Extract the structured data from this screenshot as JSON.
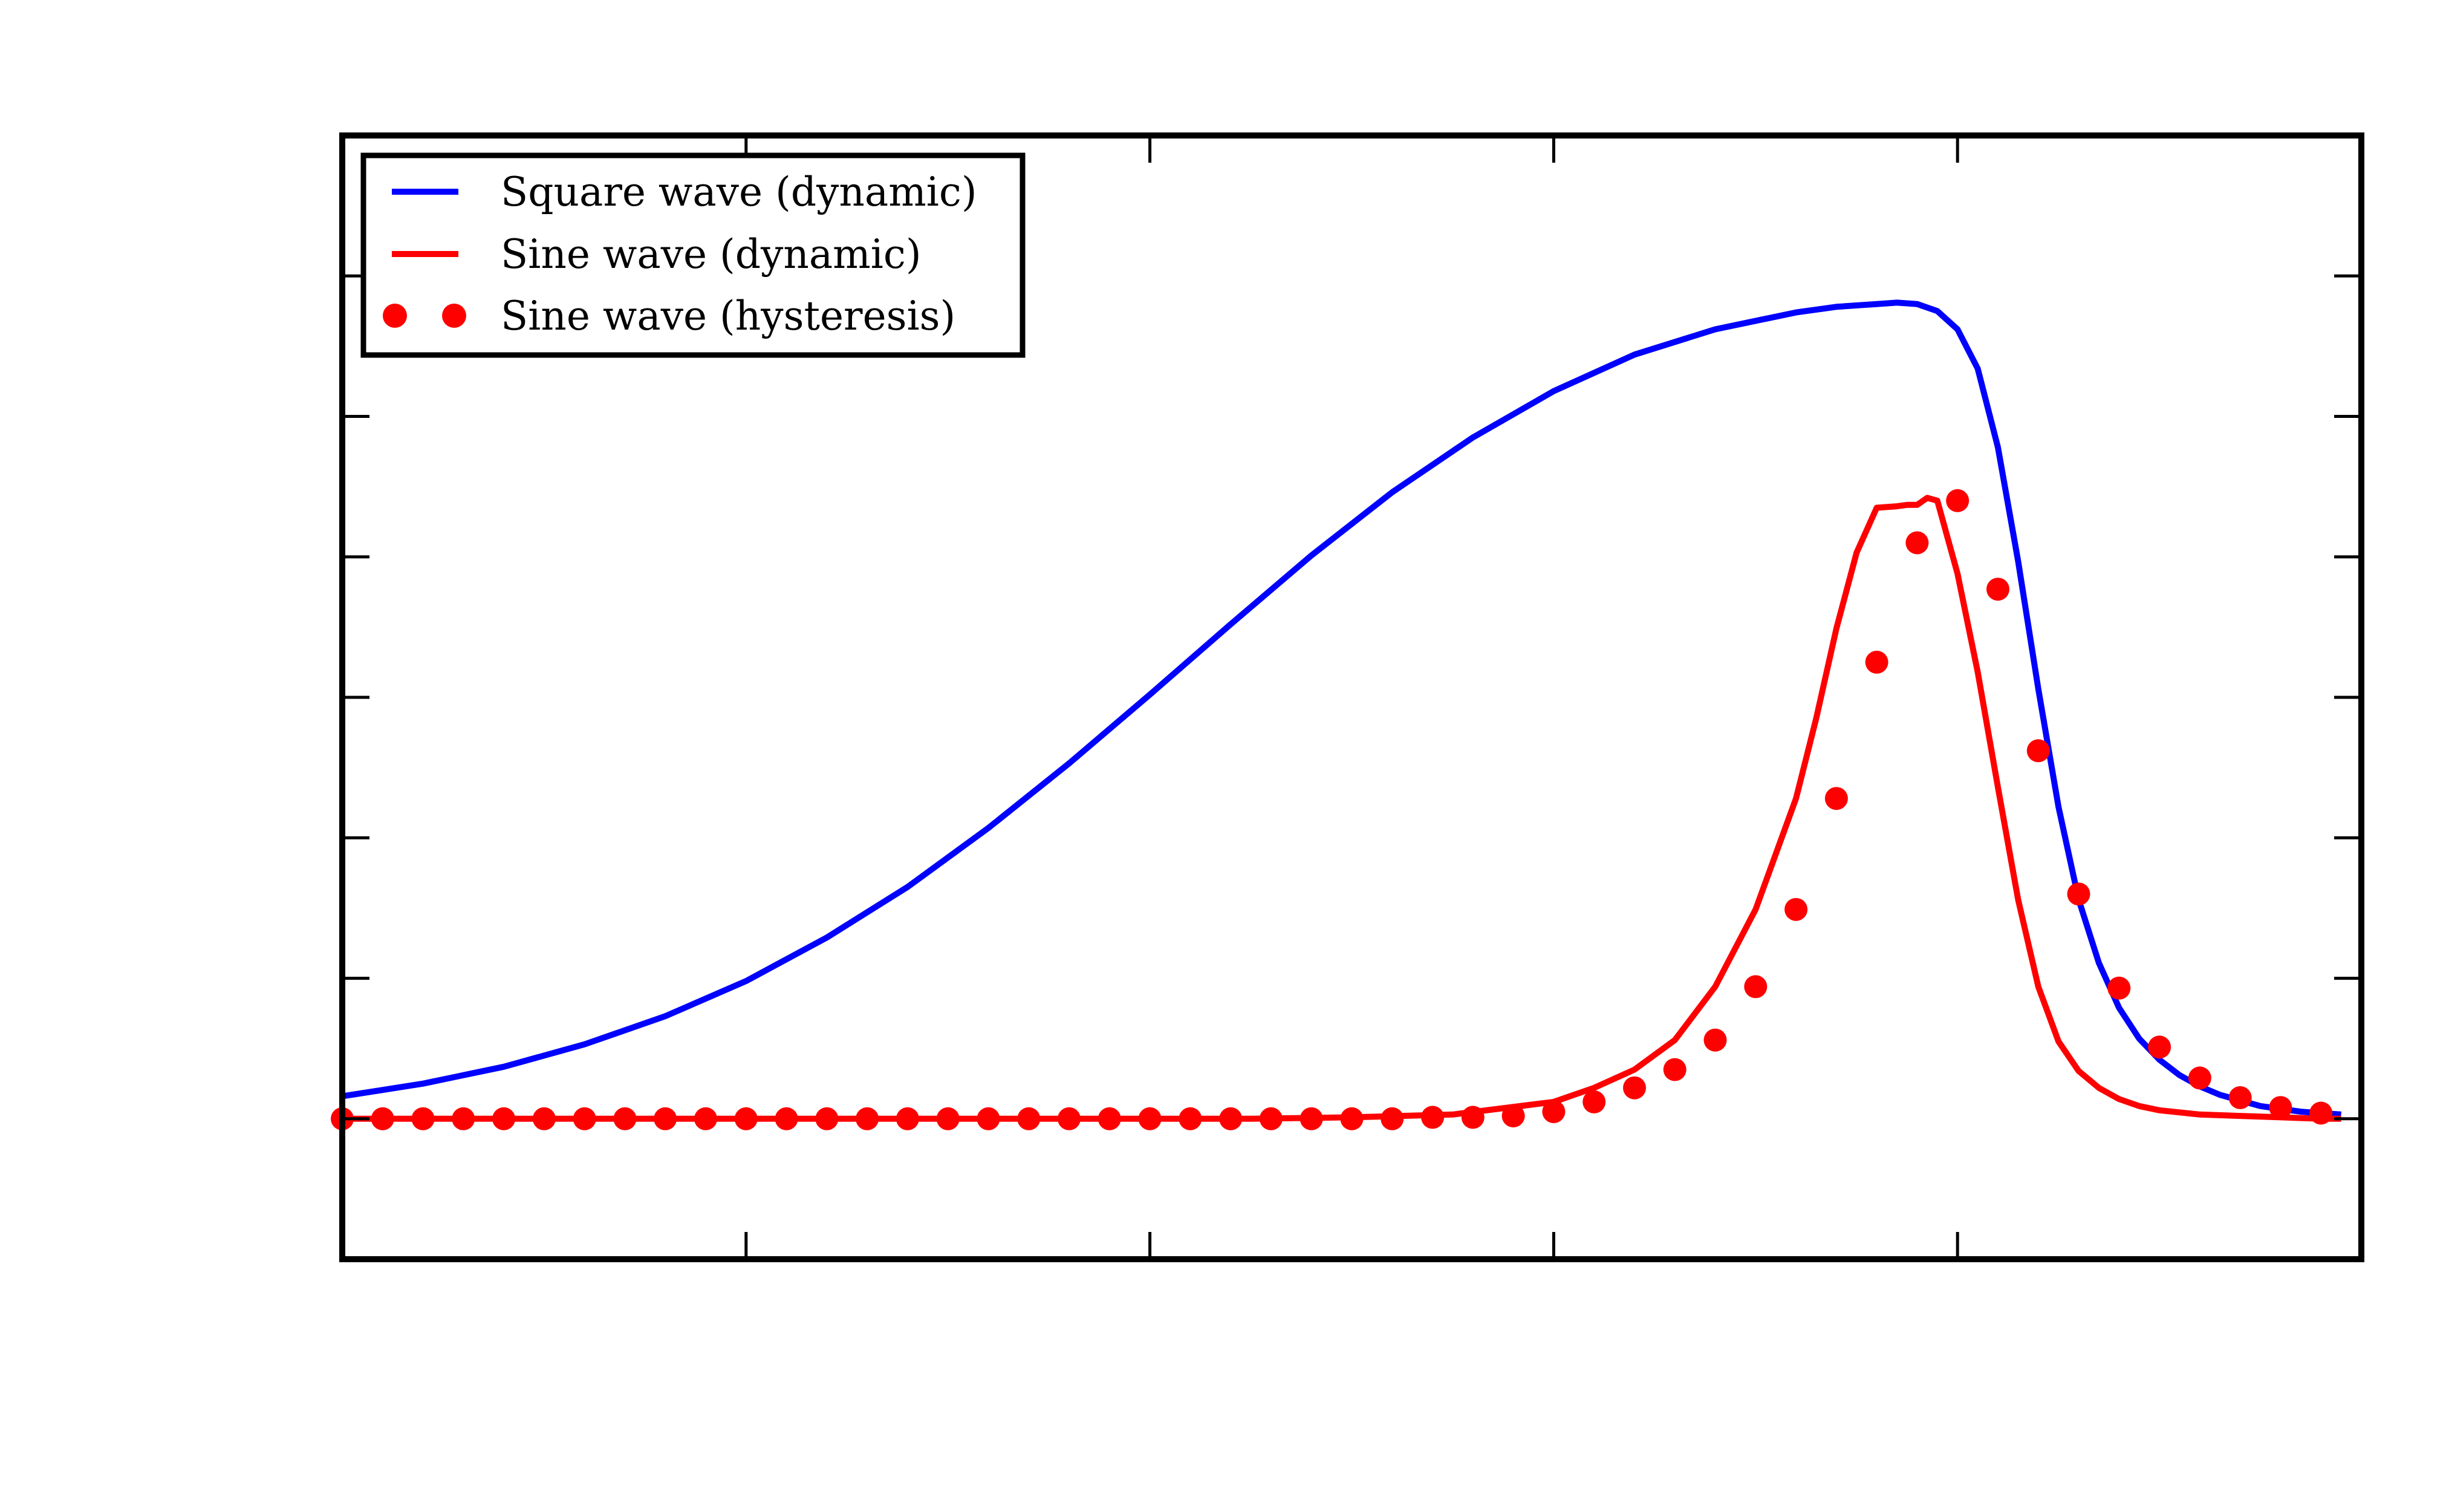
{
  "chart_data": {
    "type": "line",
    "title": "",
    "xlabel": "",
    "ylabel": "",
    "xlim": [
      0,
      1
    ],
    "ylim": [
      -0.1,
      0.7
    ],
    "grid": false,
    "legend_position": "top-left",
    "x_tick_values": [
      0.2,
      0.4,
      0.6,
      0.8
    ],
    "y_tick_values": [
      0.0,
      0.1,
      0.2,
      0.3,
      0.4,
      0.5,
      0.6
    ],
    "tick_labels_visible": false,
    "series": [
      {
        "name": "Square wave (dynamic)",
        "style": "line",
        "color": "#0000ff",
        "x": [
          0.0,
          0.04,
          0.08,
          0.12,
          0.16,
          0.2,
          0.24,
          0.28,
          0.32,
          0.36,
          0.4,
          0.44,
          0.48,
          0.52,
          0.56,
          0.6,
          0.64,
          0.68,
          0.72,
          0.74,
          0.76,
          0.77,
          0.78,
          0.79,
          0.8,
          0.81,
          0.82,
          0.83,
          0.84,
          0.85,
          0.86,
          0.87,
          0.88,
          0.89,
          0.9,
          0.91,
          0.92,
          0.93,
          0.94,
          0.95,
          0.96,
          0.97,
          0.98,
          0.99
        ],
        "y": [
          0.016,
          0.025,
          0.037,
          0.053,
          0.073,
          0.098,
          0.129,
          0.165,
          0.207,
          0.253,
          0.302,
          0.352,
          0.401,
          0.446,
          0.485,
          0.518,
          0.544,
          0.562,
          0.574,
          0.578,
          0.58,
          0.581,
          0.58,
          0.575,
          0.562,
          0.534,
          0.478,
          0.397,
          0.306,
          0.222,
          0.156,
          0.111,
          0.079,
          0.057,
          0.042,
          0.031,
          0.023,
          0.017,
          0.013,
          0.009,
          0.007,
          0.005,
          0.004,
          0.003
        ]
      },
      {
        "name": "Sine wave (dynamic)",
        "style": "line",
        "color": "#ff0000",
        "x": [
          0.0,
          0.05,
          0.1,
          0.15,
          0.2,
          0.25,
          0.3,
          0.35,
          0.4,
          0.45,
          0.5,
          0.55,
          0.6,
          0.62,
          0.64,
          0.66,
          0.68,
          0.7,
          0.72,
          0.73,
          0.74,
          0.75,
          0.76,
          0.77,
          0.775,
          0.78,
          0.785,
          0.79,
          0.8,
          0.81,
          0.82,
          0.83,
          0.84,
          0.85,
          0.86,
          0.87,
          0.88,
          0.89,
          0.9,
          0.92,
          0.94,
          0.96,
          0.98,
          0.99
        ],
        "y": [
          0.0,
          0.0,
          0.0,
          0.0,
          0.0,
          0.0,
          0.0,
          0.0,
          0.0,
          0.0,
          0.001,
          0.003,
          0.012,
          0.022,
          0.035,
          0.056,
          0.094,
          0.149,
          0.228,
          0.285,
          0.349,
          0.403,
          0.435,
          0.436,
          0.437,
          0.437,
          0.442,
          0.44,
          0.388,
          0.318,
          0.236,
          0.156,
          0.094,
          0.055,
          0.034,
          0.022,
          0.014,
          0.009,
          0.006,
          0.003,
          0.002,
          0.001,
          0.0,
          0.0
        ]
      },
      {
        "name": "Sine wave (hysteresis)",
        "style": "markers",
        "color": "#ff0000",
        "x": [
          0.0,
          0.02,
          0.04,
          0.06,
          0.08,
          0.1,
          0.12,
          0.14,
          0.16,
          0.18,
          0.2,
          0.22,
          0.24,
          0.26,
          0.28,
          0.3,
          0.32,
          0.34,
          0.36,
          0.38,
          0.4,
          0.42,
          0.44,
          0.46,
          0.48,
          0.5,
          0.52,
          0.54,
          0.56,
          0.58,
          0.6,
          0.62,
          0.64,
          0.66,
          0.68,
          0.7,
          0.72,
          0.74,
          0.76,
          0.78,
          0.8,
          0.82,
          0.84,
          0.86,
          0.88,
          0.9,
          0.92,
          0.94,
          0.96,
          0.98
        ],
        "y": [
          0.0,
          0.0,
          0.0,
          0.0,
          0.0,
          0.0,
          0.0,
          0.0,
          0.0,
          0.0,
          0.0,
          0.0,
          0.0,
          0.0,
          0.0,
          0.0,
          0.0,
          0.0,
          0.0,
          0.0,
          0.0,
          0.0,
          0.0,
          0.0,
          0.0,
          0.0,
          0.0,
          0.001,
          0.001,
          0.002,
          0.005,
          0.012,
          0.022,
          0.035,
          0.056,
          0.094,
          0.149,
          0.228,
          0.325,
          0.41,
          0.44,
          0.377,
          0.262,
          0.16,
          0.093,
          0.051,
          0.029,
          0.015,
          0.008,
          0.004
        ]
      }
    ]
  }
}
